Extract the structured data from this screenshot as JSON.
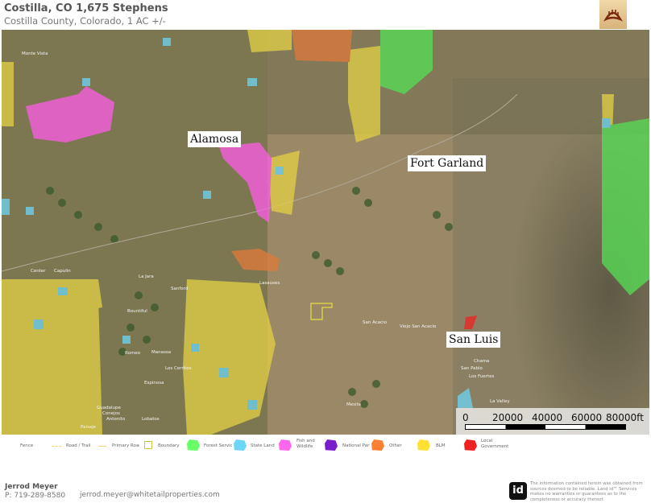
{
  "header": {
    "title": "Costilla, CO 1,675 Stephens",
    "subtitle": "Costilla County, Colorado, 1 AC +/-",
    "logo": "bear-paw-logo"
  },
  "map": {
    "cities": [
      "Alamosa",
      "Fort Garland",
      "San Luis"
    ],
    "towns": [
      "Monte Vista",
      "Center",
      "Capulin",
      "La Jara",
      "Sanford",
      "Bountiful",
      "Romeo",
      "Manassa",
      "Los Cerritos",
      "Espinosa",
      "Guadalupe",
      "Conejos",
      "Antonito",
      "Lobatos",
      "Paisaje",
      "Lasauses",
      "San Acacio",
      "Viejo San Acacio",
      "Chama",
      "San Pablo",
      "Los Fuertes",
      "La Valley",
      "Mesita"
    ],
    "scale_bar": {
      "labels": [
        "0",
        "20000",
        "40000",
        "60000",
        "80000ft"
      ]
    }
  },
  "legend": {
    "items": [
      {
        "label": "Fence",
        "type": "none"
      },
      {
        "label": "Road / Trail",
        "type": "dashed-line",
        "color": "#f5d67a"
      },
      {
        "label": "Primary Road",
        "type": "line",
        "color": "#f5d67a"
      },
      {
        "label": "Boundary",
        "type": "outline",
        "color": "#c8c24a"
      },
      {
        "label": "Forest Service",
        "type": "fill",
        "color": "#66ff66"
      },
      {
        "label": "State Land",
        "type": "fill",
        "color": "#6dd5f5"
      },
      {
        "label": "Fish and Wildlife",
        "type": "fill",
        "color": "#ff66ee"
      },
      {
        "label": "National Park",
        "type": "fill",
        "color": "#7b1fcc"
      },
      {
        "label": "Other",
        "type": "fill",
        "color": "#ff8033"
      },
      {
        "label": "BLM",
        "type": "fill",
        "color": "#ffe033"
      },
      {
        "label": "Local Government",
        "type": "fill",
        "color": "#ee2222"
      }
    ]
  },
  "footer": {
    "name": "Jerrod Meyer",
    "phone": "P: 719-289-8580",
    "email": "jerrod.meyer@whitetailproperties.com",
    "id_logo": "id",
    "disclaimer": "The information contained herein was obtained from sources deemed to be reliable. Land id™ Services makes no warranties or guarantees as to the completeness or accuracy thereof."
  }
}
